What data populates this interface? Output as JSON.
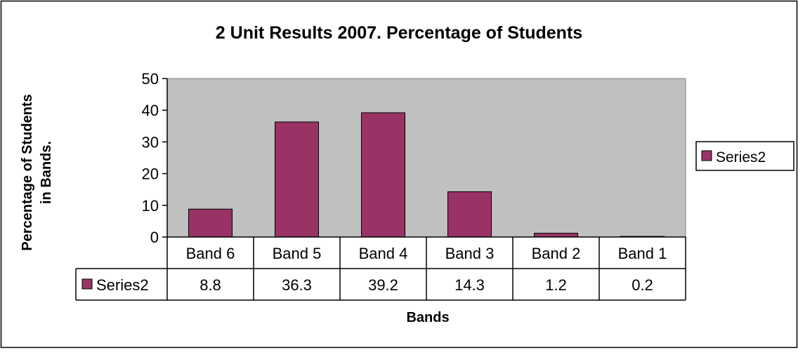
{
  "chart_data": {
    "type": "bar",
    "title": "2 Unit Results 2007. Percentage of Students",
    "xlabel": "Bands",
    "ylabel": [
      "Percentage of Students",
      "in Bands."
    ],
    "categories": [
      "Band 6",
      "Band 5",
      "Band 4",
      "Band 3",
      "Band 2",
      "Band 1"
    ],
    "series": [
      {
        "name": "Series2",
        "values": [
          8.8,
          36.3,
          39.2,
          14.3,
          1.2,
          0.2
        ]
      }
    ],
    "ylim": [
      0,
      50
    ],
    "yticks": [
      0,
      10,
      20,
      30,
      40,
      50
    ],
    "grid": false,
    "legend": "right",
    "data_table": true,
    "colors": {
      "bar": "#993366",
      "plot_background": "#c0c0c0",
      "border": "#000000"
    }
  }
}
